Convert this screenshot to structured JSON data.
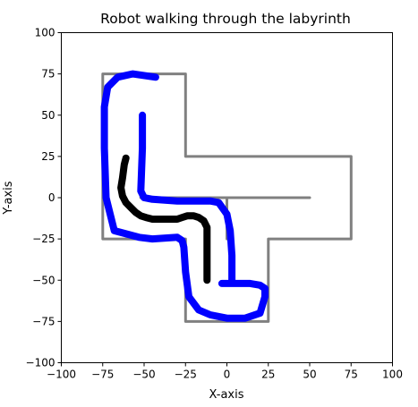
{
  "chart_data": {
    "type": "line",
    "title": "Robot walking through the labyrinth",
    "xlabel": "X-axis",
    "ylabel": "Y-axis",
    "xlim": [
      -100,
      100
    ],
    "ylim": [
      -100,
      100
    ],
    "grid": false,
    "legend": "none",
    "x_ticks": [
      -100,
      -75,
      -50,
      -25,
      0,
      25,
      50,
      75,
      100
    ],
    "y_ticks": [
      -100,
      -75,
      -50,
      -25,
      0,
      25,
      50,
      75,
      100
    ],
    "x_tick_labels": [
      "−100",
      "−75",
      "−50",
      "−25",
      "0",
      "25",
      "50",
      "75",
      "100"
    ],
    "y_tick_labels": [
      "−100",
      "−75",
      "−50",
      "−25",
      "0",
      "25",
      "50",
      "75",
      "100"
    ],
    "series": [
      {
        "color": "#808080",
        "role": "labyrinth-outer-wall",
        "x": [
          -25,
          -75,
          -75,
          -25,
          -25,
          25,
          25,
          75,
          75,
          -25,
          -25
        ],
        "y": [
          75,
          75,
          -25,
          -25,
          -75,
          -75,
          -25,
          -25,
          25,
          25,
          75
        ]
      },
      {
        "color": "#808080",
        "role": "labyrinth-inner-wall",
        "x": [
          -52,
          -52,
          50
        ],
        "y": [
          50,
          0,
          0
        ]
      },
      {
        "color": "#808080",
        "role": "labyrinth-inner-wall",
        "x": [
          -52,
          0,
          0
        ],
        "y": [
          0,
          0,
          -25
        ]
      },
      {
        "color": "#0000ff",
        "role": "robot-sensor-trace",
        "x": [
          -43,
          -57,
          -66,
          -72,
          -74,
          -74,
          -73,
          -68,
          -53,
          -45,
          -30,
          -27,
          -26,
          -25,
          -23,
          -17,
          -10,
          0,
          11,
          20,
          23,
          23,
          20,
          14,
          5,
          -3
        ],
        "y": [
          73,
          75,
          73,
          67,
          55,
          30,
          0,
          -20,
          -24,
          -25,
          -24,
          -26,
          -30,
          -45,
          -60,
          -68,
          -71,
          -73,
          -73,
          -70,
          -60,
          -55,
          -53,
          -52,
          -52,
          -52
        ]
      },
      {
        "color": "#0000ff",
        "role": "robot-sensor-trace",
        "x": [
          -51,
          -51,
          -52,
          -50,
          -45,
          -30,
          -10,
          -5,
          0,
          2,
          3,
          3
        ],
        "y": [
          50,
          30,
          4,
          0,
          -1,
          -2,
          -2,
          -3,
          -10,
          -20,
          -35,
          -50
        ]
      },
      {
        "color": "#000000",
        "role": "robot-path",
        "x": [
          -61,
          -62,
          -63,
          -64,
          -63,
          -61,
          -58,
          -55,
          -52,
          -49,
          -45,
          -40,
          -35,
          -30,
          -27,
          -24,
          -20,
          -17,
          -14,
          -12,
          -12,
          -12,
          -12,
          -12
        ],
        "y": [
          24,
          20,
          12,
          6,
          1,
          -3,
          -6,
          -9,
          -11,
          -12,
          -13,
          -13,
          -13,
          -13,
          -12,
          -11,
          -11,
          -12,
          -14,
          -18,
          -25,
          -35,
          -45,
          -50
        ]
      }
    ]
  }
}
